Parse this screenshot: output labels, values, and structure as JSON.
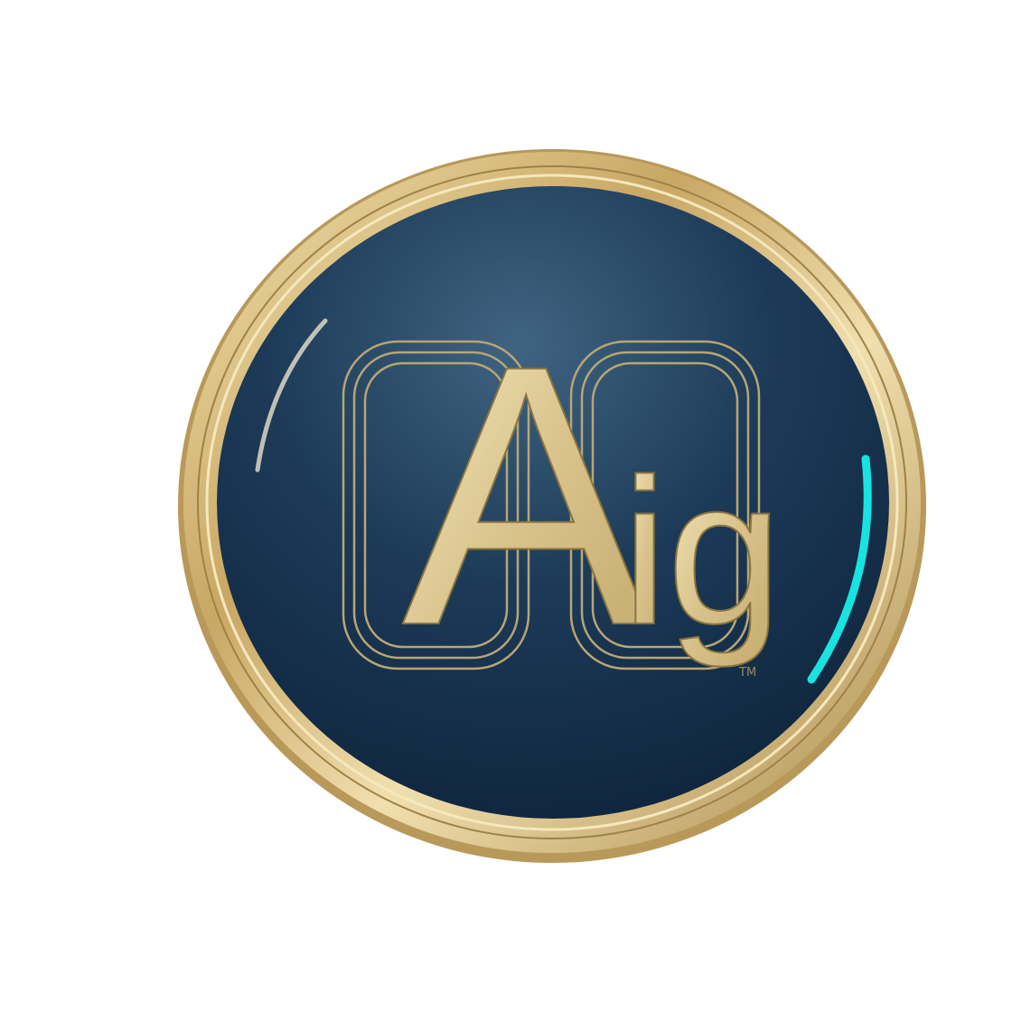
{
  "logo": {
    "letters": [
      "A",
      "i",
      "g"
    ],
    "trademark": "TM"
  }
}
